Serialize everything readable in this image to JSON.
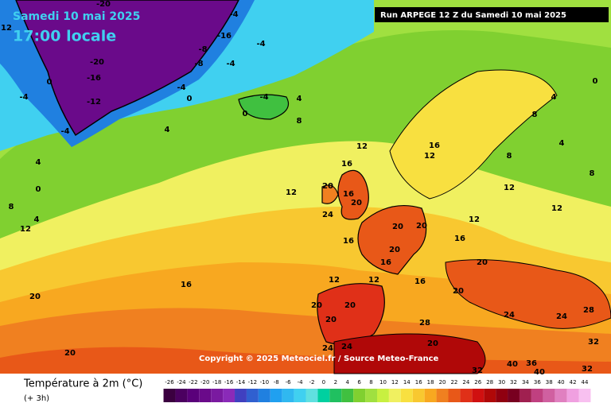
{
  "header": {
    "date": "Samedi 10 mai 2025",
    "time": "17:00 locale",
    "run": "Run ARPEGE 12 Z du Samedi 10 mai 2025"
  },
  "copyright": "Copyright © 2025 Meteociel.fr / Source Meteo-France",
  "legend": {
    "title": "Température à 2m (°C)",
    "subtitle": "(+ 3h)",
    "ticks": [
      -26,
      -24,
      -22,
      -20,
      -18,
      -16,
      -14,
      -12,
      -10,
      -8,
      -6,
      -4,
      -2,
      0,
      2,
      4,
      6,
      8,
      10,
      12,
      14,
      16,
      18,
      20,
      22,
      24,
      26,
      28,
      30,
      32,
      34,
      36,
      38,
      40,
      42,
      44
    ],
    "colors": [
      "#3b0040",
      "#4b0060",
      "#5a007a",
      "#6a0a8a",
      "#7a1aa0",
      "#8a2ab8",
      "#4040c0",
      "#3060d0",
      "#2080e0",
      "#20a0f0",
      "#30b8f0",
      "#40d0f0",
      "#60e0e0",
      "#00d0a0",
      "#20c060",
      "#40c040",
      "#80d030",
      "#a0e040",
      "#c8f040",
      "#f0f060",
      "#f8e040",
      "#f8c830",
      "#f8a820",
      "#f08020",
      "#e85818",
      "#e03018",
      "#d01010",
      "#b00808",
      "#900010",
      "#780020",
      "#a02050",
      "#c04080",
      "#d060a0",
      "#e080c0",
      "#f0a0e0",
      "#f8c0f0"
    ]
  },
  "map_labels": [
    -20,
    -4,
    12,
    -16,
    -8,
    -4,
    -20,
    -8,
    -4,
    -16,
    0,
    -4,
    -12,
    -4,
    0,
    -4,
    4,
    0,
    8,
    4,
    -4,
    4,
    0,
    8,
    12,
    4,
    12,
    16,
    12,
    20,
    16,
    20,
    24,
    16,
    20,
    20,
    20,
    16,
    16,
    20,
    12,
    12,
    20,
    20,
    20,
    24,
    24,
    28,
    20,
    32,
    40,
    36,
    40,
    32,
    32,
    28,
    24,
    16,
    12,
    12,
    12,
    8,
    0,
    4,
    8,
    4,
    8,
    20,
    12,
    16,
    20,
    24,
    20,
    16
  ]
}
